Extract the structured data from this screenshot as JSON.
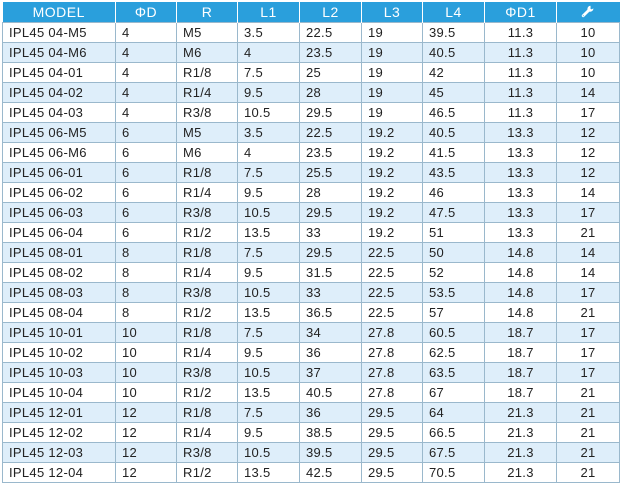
{
  "headers": {
    "model": "MODEL",
    "d": "ΦD",
    "r": "R",
    "l1": "L1",
    "l2": "L2",
    "l3": "L3",
    "l4": "L4",
    "d1": "ΦD1",
    "wrench_icon": "wrench-icon"
  },
  "rows": [
    [
      "IPL45 04-M5",
      "4",
      "M5",
      "3.5",
      "22.5",
      "19",
      "39.5",
      "11.3",
      "10"
    ],
    [
      "IPL45 04-M6",
      "4",
      "M6",
      "4",
      "23.5",
      "19",
      "40.5",
      "11.3",
      "10"
    ],
    [
      "IPL45 04-01",
      "4",
      "R1/8",
      "7.5",
      "25",
      "19",
      "42",
      "11.3",
      "10"
    ],
    [
      "IPL45 04-02",
      "4",
      "R1/4",
      "9.5",
      "28",
      "19",
      "45",
      "11.3",
      "14"
    ],
    [
      "IPL45 04-03",
      "4",
      "R3/8",
      "10.5",
      "29.5",
      "19",
      "46.5",
      "11.3",
      "17"
    ],
    [
      "IPL45 06-M5",
      "6",
      "M5",
      "3.5",
      "22.5",
      "19.2",
      "40.5",
      "13.3",
      "12"
    ],
    [
      "IPL45 06-M6",
      "6",
      "M6",
      "4",
      "23.5",
      "19.2",
      "41.5",
      "13.3",
      "12"
    ],
    [
      "IPL45 06-01",
      "6",
      "R1/8",
      "7.5",
      "25.5",
      "19.2",
      "43.5",
      "13.3",
      "12"
    ],
    [
      "IPL45 06-02",
      "6",
      "R1/4",
      "9.5",
      "28",
      "19.2",
      "46",
      "13.3",
      "14"
    ],
    [
      "IPL45 06-03",
      "6",
      "R3/8",
      "10.5",
      "29.5",
      "19.2",
      "47.5",
      "13.3",
      "17"
    ],
    [
      "IPL45 06-04",
      "6",
      "R1/2",
      "13.5",
      "33",
      "19.2",
      "51",
      "13.3",
      "21"
    ],
    [
      "IPL45 08-01",
      "8",
      "R1/8",
      "7.5",
      "29.5",
      "22.5",
      "50",
      "14.8",
      "14"
    ],
    [
      "IPL45 08-02",
      "8",
      "R1/4",
      "9.5",
      "31.5",
      "22.5",
      "52",
      "14.8",
      "14"
    ],
    [
      "IPL45 08-03",
      "8",
      "R3/8",
      "10.5",
      "33",
      "22.5",
      "53.5",
      "14.8",
      "17"
    ],
    [
      "IPL45 08-04",
      "8",
      "R1/2",
      "13.5",
      "36.5",
      "22.5",
      "57",
      "14.8",
      "21"
    ],
    [
      "IPL45 10-01",
      "10",
      "R1/8",
      "7.5",
      "34",
      "27.8",
      "60.5",
      "18.7",
      "17"
    ],
    [
      "IPL45 10-02",
      "10",
      "R1/4",
      "9.5",
      "36",
      "27.8",
      "62.5",
      "18.7",
      "17"
    ],
    [
      "IPL45 10-03",
      "10",
      "R3/8",
      "10.5",
      "37",
      "27.8",
      "63.5",
      "18.7",
      "17"
    ],
    [
      "IPL45 10-04",
      "10",
      "R1/2",
      "13.5",
      "40.5",
      "27.8",
      "67",
      "18.7",
      "21"
    ],
    [
      "IPL45 12-01",
      "12",
      "R1/8",
      "7.5",
      "36",
      "29.5",
      "64",
      "21.3",
      "21"
    ],
    [
      "IPL45 12-02",
      "12",
      "R1/4",
      "9.5",
      "38.5",
      "29.5",
      "66.5",
      "21.3",
      "21"
    ],
    [
      "IPL45 12-03",
      "12",
      "R3/8",
      "10.5",
      "39.5",
      "29.5",
      "67.5",
      "21.3",
      "21"
    ],
    [
      "IPL45 12-04",
      "12",
      "R1/2",
      "13.5",
      "42.5",
      "29.5",
      "70.5",
      "21.3",
      "21"
    ]
  ],
  "colors": {
    "header_bg": "#2a9fdc",
    "header_text": "#ffffff",
    "alt_row_bg": "#deeefa",
    "border": "#9ab8cc"
  }
}
